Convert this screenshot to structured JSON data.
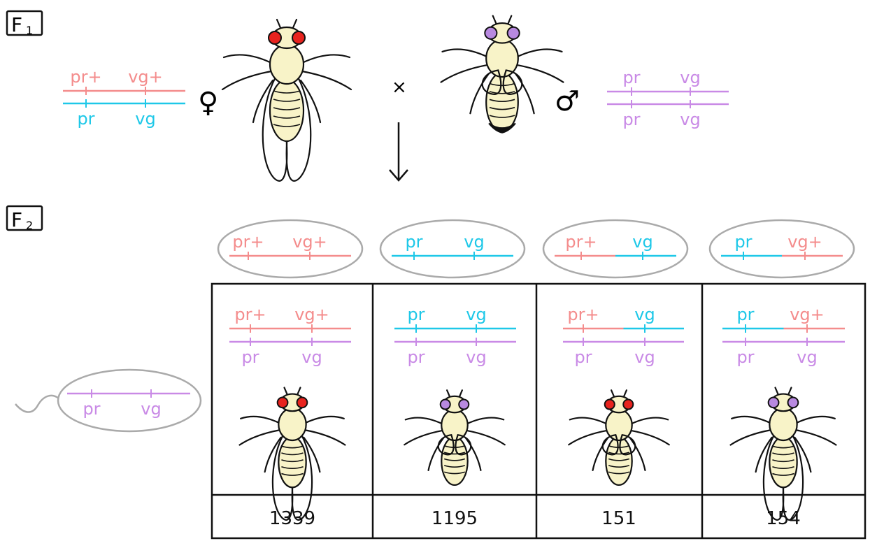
{
  "colors": {
    "wild_type_allele": "#f48c8c",
    "f1_mutant_allele": "#1ec8e8",
    "tester_allele": "#c98ae6",
    "eye_red": "#e8231e",
    "eye_purple": "#b889e0",
    "body": "#f8f3c8",
    "outline": "#111111",
    "gamete_oval": "#aaaaaa"
  },
  "generations": {
    "f1": {
      "letter": "F",
      "sub": "1"
    },
    "f2": {
      "letter": "F",
      "sub": "2"
    }
  },
  "cross": {
    "symbol": "×",
    "female_symbol": "♀",
    "male_symbol": "♂",
    "female_chromosomes": {
      "top": [
        "pr+",
        "vg+"
      ],
      "bottom": [
        "pr",
        "vg"
      ]
    },
    "male_chromosomes": {
      "top": [
        "pr",
        "vg"
      ],
      "bottom": [
        "pr",
        "vg"
      ]
    }
  },
  "tester_gamete": [
    "pr",
    "vg"
  ],
  "offspring": [
    {
      "gamete": [
        "pr+",
        "vg+"
      ],
      "genotype_top": [
        "pr+",
        "vg+"
      ],
      "genotype_bottom": [
        "pr",
        "vg"
      ],
      "eye": "red",
      "wings": "normal",
      "count": "1339"
    },
    {
      "gamete": [
        "pr",
        "vg"
      ],
      "genotype_top": [
        "pr",
        "vg"
      ],
      "genotype_bottom": [
        "pr",
        "vg"
      ],
      "eye": "purple",
      "wings": "vestigial",
      "count": "1195"
    },
    {
      "gamete": [
        "pr+",
        "vg"
      ],
      "genotype_top": [
        "pr+",
        "vg"
      ],
      "genotype_bottom": [
        "pr",
        "vg"
      ],
      "eye": "red",
      "wings": "vestigial",
      "count": "151"
    },
    {
      "gamete": [
        "pr",
        "vg+"
      ],
      "genotype_top": [
        "pr",
        "vg+"
      ],
      "genotype_bottom": [
        "pr",
        "vg"
      ],
      "eye": "purple",
      "wings": "normal",
      "count": "154"
    }
  ]
}
